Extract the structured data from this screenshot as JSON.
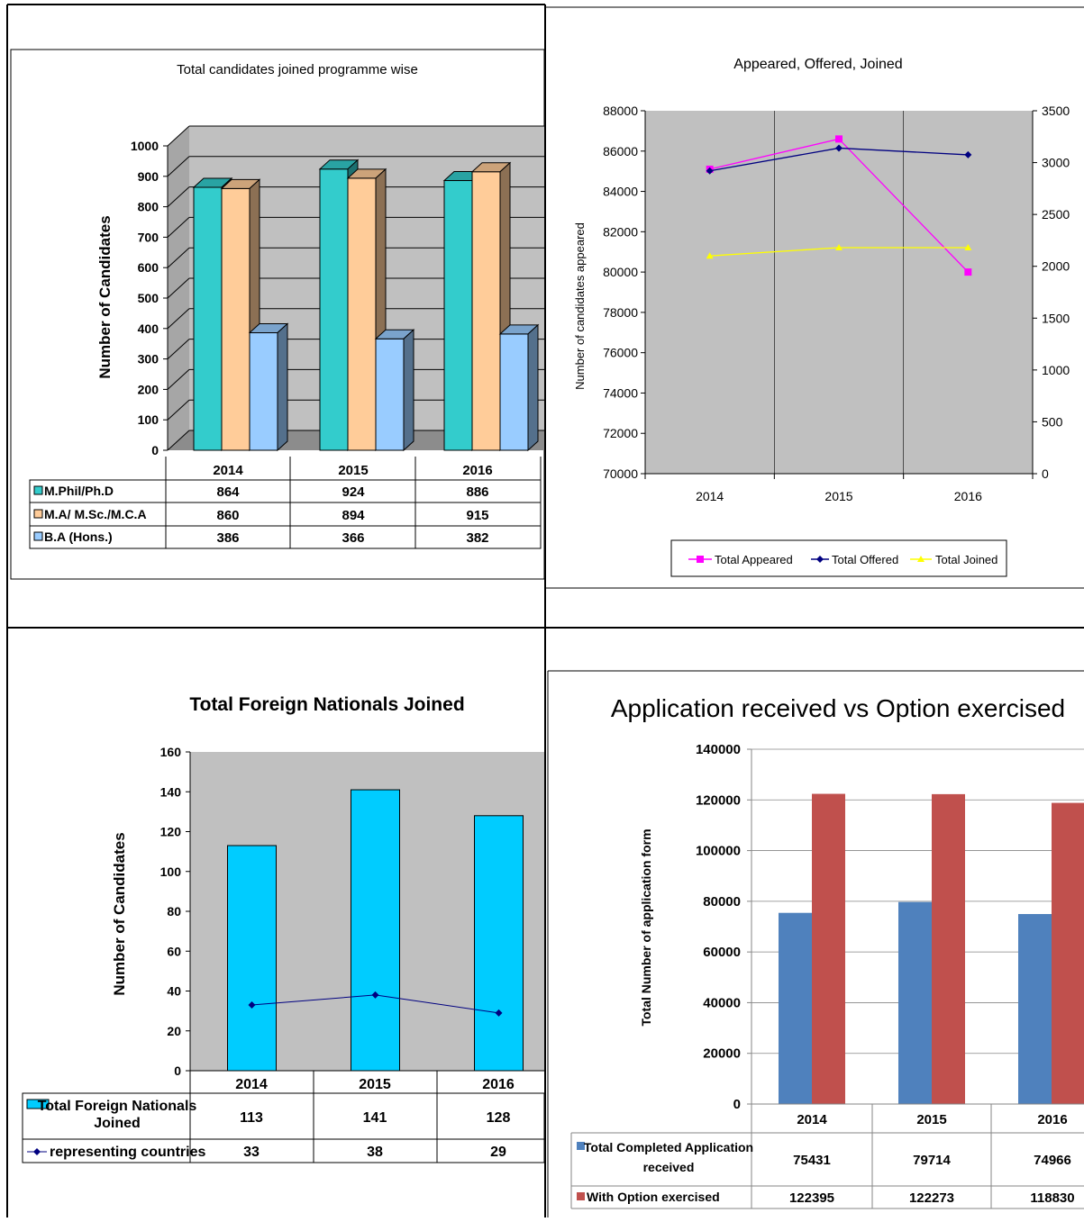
{
  "colors": {
    "teal": "#33CCCC",
    "tan": "#FFCC99",
    "lightblue": "#99CCFF",
    "plot_gray": "#C0C0C0",
    "magenta": "#FF00FF",
    "navy": "#000080",
    "yellow": "#FFFF00",
    "cyan": "#00CCFF",
    "steelblue": "#4F81BD",
    "brick": "#C0504D"
  },
  "chart_data": [
    {
      "type": "bar",
      "title": "Total candidates joined programme wise",
      "ylabel": "Number of Candidates",
      "ylim": [
        0,
        1000
      ],
      "yticks": [
        "0",
        "100",
        "200",
        "300",
        "400",
        "500",
        "600",
        "700",
        "800",
        "900",
        "1000"
      ],
      "categories": [
        "2014",
        "2015",
        "2016"
      ],
      "series": [
        {
          "name": "M.Phil/Ph.D",
          "values": [
            864,
            924,
            886
          ],
          "labels": [
            "864",
            "924",
            "886"
          ]
        },
        {
          "name": "M.A/ M.Sc./M.C.A",
          "values": [
            860,
            894,
            915
          ],
          "labels": [
            "860",
            "894",
            "915"
          ]
        },
        {
          "name": "B.A (Hons.)",
          "values": [
            386,
            366,
            382
          ],
          "labels": [
            "386",
            "366",
            "382"
          ]
        }
      ]
    },
    {
      "type": "line",
      "title": "Appeared, Offered, Joined",
      "ylabel": "Number of candidates appeared",
      "ylim": [
        70000,
        88000
      ],
      "yticks": [
        "70000",
        "72000",
        "74000",
        "76000",
        "78000",
        "80000",
        "82000",
        "84000",
        "86000",
        "88000"
      ],
      "y2lim": [
        0,
        3500
      ],
      "y2ticks": [
        "0",
        "500",
        "1000",
        "1500",
        "2000",
        "2500",
        "3000",
        "3500"
      ],
      "categories": [
        "2014",
        "2015",
        "2016"
      ],
      "series": [
        {
          "name": "Total Appeared",
          "axis": "left",
          "values": [
            85100,
            86600,
            80000
          ]
        },
        {
          "name": "Total Offered",
          "axis": "right",
          "values": [
            2920,
            3140,
            3075
          ]
        },
        {
          "name": "Total Joined",
          "axis": "right",
          "values": [
            2100,
            2180,
            2180
          ]
        }
      ],
      "legend": "bottom"
    },
    {
      "type": "bar",
      "title": "Total Foreign Nationals Joined",
      "ylabel": "Number of Candidates",
      "ylim": [
        0,
        160
      ],
      "yticks": [
        "0",
        "20",
        "40",
        "60",
        "80",
        "100",
        "120",
        "140",
        "160"
      ],
      "categories": [
        "2014",
        "2015",
        "2016"
      ],
      "series": [
        {
          "name": "Total Foreign Nationals Joined",
          "kind": "bar",
          "values": [
            113,
            141,
            128
          ],
          "labels": [
            "113",
            "141",
            "128"
          ]
        },
        {
          "name": "representing countries",
          "kind": "line",
          "values": [
            33,
            38,
            29
          ],
          "labels": [
            "33",
            "38",
            "29"
          ]
        }
      ]
    },
    {
      "type": "bar",
      "title": "Application received vs Option exercised",
      "ylabel": "Total Number of application form",
      "ylim": [
        0,
        140000
      ],
      "yticks": [
        "0",
        "20000",
        "40000",
        "60000",
        "80000",
        "100000",
        "120000",
        "140000"
      ],
      "categories": [
        "2014",
        "2015",
        "2016"
      ],
      "series": [
        {
          "name": "Total Completed Application received",
          "values": [
            75431,
            79714,
            74966
          ],
          "labels": [
            "75431",
            "79714",
            "74966"
          ]
        },
        {
          "name": "With Option exercised",
          "values": [
            122395,
            122273,
            118830
          ],
          "labels": [
            "122395",
            "122273",
            "118830"
          ]
        }
      ]
    }
  ]
}
